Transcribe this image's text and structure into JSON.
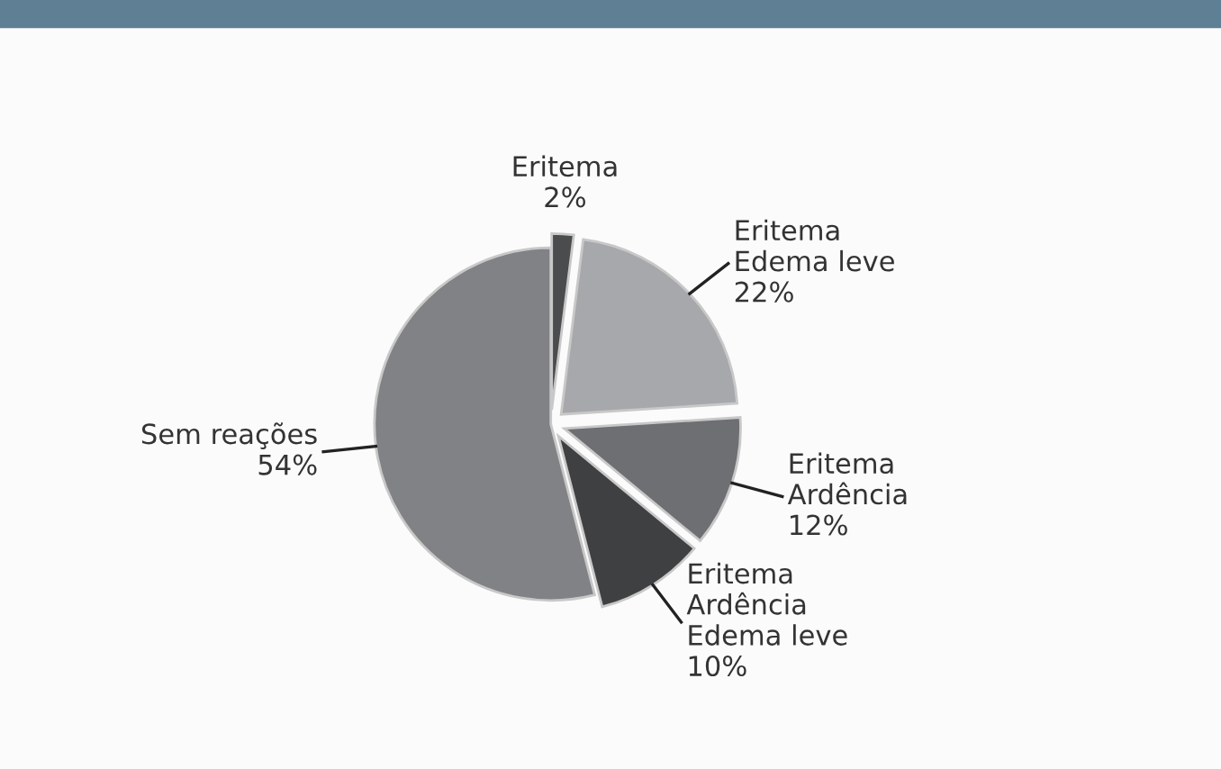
{
  "chart_data": {
    "type": "pie",
    "categories": [
      "Eritema",
      "Eritema\nEdema leve",
      "Eritema\nArdência",
      "Eritema\nArdência\nEdema leve",
      "Sem reações"
    ],
    "values": [
      2,
      22,
      12,
      10,
      54
    ],
    "value_labels": [
      "2%",
      "22%",
      "12%",
      "10%",
      "54%"
    ],
    "colors": [
      "#4b4c4e",
      "#a6a8ab",
      "#6d6f72",
      "#3f4042",
      "#808285"
    ]
  }
}
